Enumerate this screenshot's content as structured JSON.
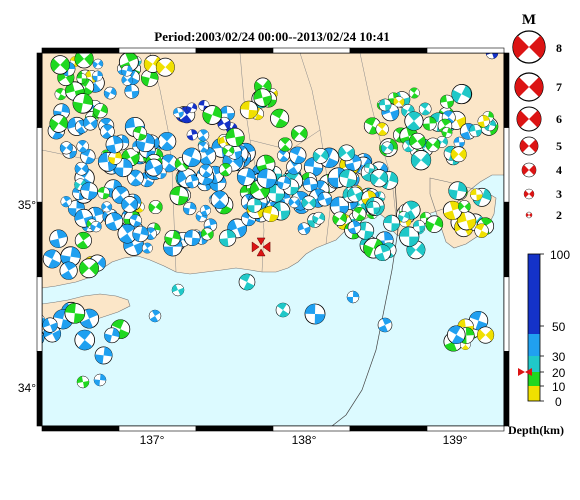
{
  "title": "Period:2003/02/24 00:00--2013/02/24 10:41",
  "axes": {
    "lon_ticks": [
      "137°",
      "138°",
      "139°"
    ],
    "lat_ticks": [
      "35°",
      "34°"
    ]
  },
  "magnitude_legend": {
    "header": "M",
    "labels": [
      "8",
      "7",
      "6",
      "5",
      "4",
      "3",
      "2"
    ]
  },
  "depth_legend": {
    "labels": [
      "100",
      "50",
      "30",
      "20",
      "10",
      "0"
    ],
    "title": "Depth(km)",
    "colors": [
      "#1432c8",
      "#20a0f0",
      "#20c8c8",
      "#20d820",
      "#f0e000"
    ],
    "marker_depth": 20
  },
  "colors": {
    "sea": "#dcfaff",
    "land": "#fbe6c8",
    "frame": "#000000",
    "event_marker": "#dc1414"
  },
  "map": {
    "lon_range": [
      136.25,
      139.35
    ],
    "lat_range": [
      33.82,
      35.82
    ],
    "event_marker": {
      "lon": 137.72,
      "lat": 34.78
    }
  }
}
